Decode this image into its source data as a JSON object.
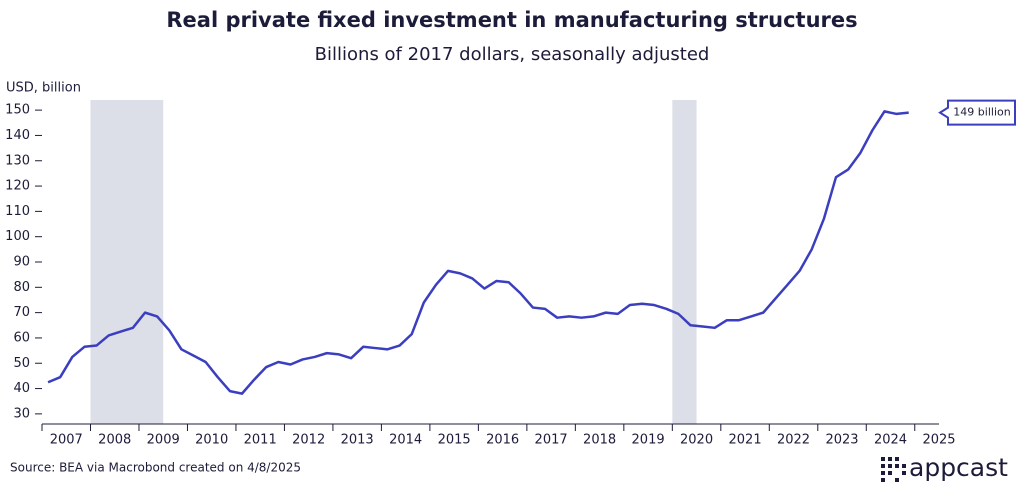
{
  "chart_data": {
    "type": "line",
    "title": "Real private fixed investment in manufacturing structures",
    "subtitle": "Billions of 2017 dollars, seasonally adjusted",
    "ylabel": "USD, billion",
    "source": "Source: BEA via Macrobond created on 4/8/2025",
    "annotation": "149 billion",
    "brand": "appcast",
    "x": [
      2007.125,
      2007.375,
      2007.625,
      2007.875,
      2008.125,
      2008.375,
      2008.625,
      2008.875,
      2009.125,
      2009.375,
      2009.625,
      2009.875,
      2010.125,
      2010.375,
      2010.625,
      2010.875,
      2011.125,
      2011.375,
      2011.625,
      2011.875,
      2012.125,
      2012.375,
      2012.625,
      2012.875,
      2013.125,
      2013.375,
      2013.625,
      2013.875,
      2014.125,
      2014.375,
      2014.625,
      2014.875,
      2015.125,
      2015.375,
      2015.625,
      2015.875,
      2016.125,
      2016.375,
      2016.625,
      2016.875,
      2017.125,
      2017.375,
      2017.625,
      2017.875,
      2018.125,
      2018.375,
      2018.625,
      2018.875,
      2019.125,
      2019.375,
      2019.625,
      2019.875,
      2020.125,
      2020.375,
      2020.625,
      2020.875,
      2021.125,
      2021.375,
      2021.625,
      2021.875,
      2022.125,
      2022.375,
      2022.625,
      2022.875,
      2023.125,
      2023.375,
      2023.625,
      2023.875,
      2024.125,
      2024.375,
      2024.625,
      2024.875
    ],
    "series": [
      {
        "name": "Real private fixed investment in manufacturing structures",
        "color": "#3b3fbf",
        "values": [
          42.5,
          44.5,
          52.5,
          56.5,
          57,
          61,
          62.5,
          64,
          70,
          68.5,
          63,
          55.5,
          53,
          50.5,
          44.5,
          39,
          38,
          43.5,
          48.5,
          50.5,
          49.5,
          51.5,
          52.5,
          54,
          53.5,
          52,
          56.5,
          56,
          55.5,
          57,
          61.5,
          74,
          81,
          86.5,
          85.5,
          83.5,
          79.5,
          82.5,
          82,
          77.5,
          72,
          71.5,
          68,
          68.5,
          68,
          68.5,
          70,
          69.5,
          73,
          73.5,
          73,
          71.5,
          69.5,
          65,
          64.5,
          64,
          67,
          67,
          68.5,
          70,
          75.5,
          81,
          86.5,
          95,
          107,
          123.5,
          126.5,
          133,
          142,
          149.5,
          148.5,
          149
        ]
      }
    ],
    "shaded_periods": [
      [
        2008.0,
        2009.5
      ],
      [
        2020.0,
        2020.5
      ]
    ],
    "shade_color": "#dcdfe7",
    "xlim": [
      2007,
      2025.5
    ],
    "xticks": [
      {
        "value": 2007,
        "label": "2007"
      },
      {
        "value": 2008,
        "label": "2008"
      },
      {
        "value": 2009,
        "label": "2009"
      },
      {
        "value": 2010,
        "label": "2010"
      },
      {
        "value": 2011,
        "label": "2011"
      },
      {
        "value": 2012,
        "label": "2012"
      },
      {
        "value": 2013,
        "label": "2013"
      },
      {
        "value": 2014,
        "label": "2014"
      },
      {
        "value": 2015,
        "label": "2015"
      },
      {
        "value": 2016,
        "label": "2016"
      },
      {
        "value": 2017,
        "label": "2017"
      },
      {
        "value": 2018,
        "label": "2018"
      },
      {
        "value": 2019,
        "label": "2019"
      },
      {
        "value": 2020,
        "label": "2020"
      },
      {
        "value": 2021,
        "label": "2021"
      },
      {
        "value": 2022,
        "label": "2022"
      },
      {
        "value": 2023,
        "label": "2023"
      },
      {
        "value": 2024,
        "label": "2024"
      },
      {
        "value": 2025,
        "label": "2025"
      }
    ],
    "ylim": [
      26,
      154
    ],
    "yticks": [
      30,
      40,
      50,
      60,
      70,
      80,
      90,
      100,
      110,
      120,
      130,
      140,
      150
    ],
    "grid": false
  }
}
